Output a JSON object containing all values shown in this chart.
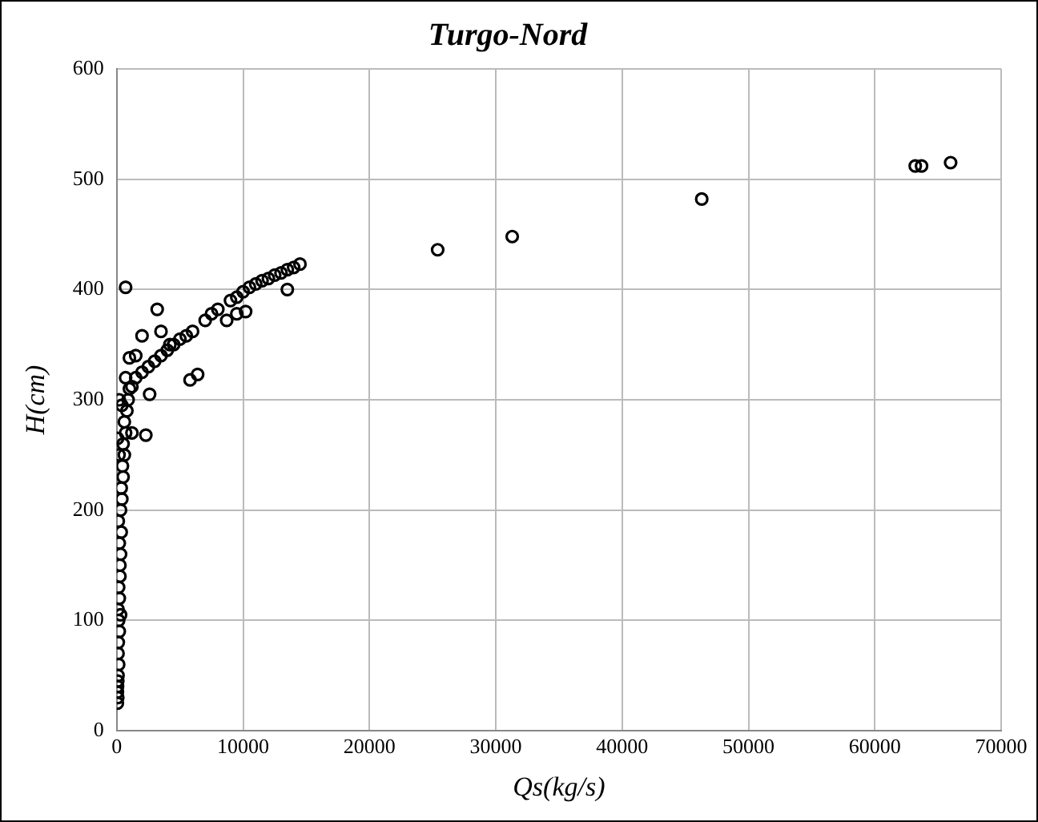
{
  "chart_data": {
    "type": "scatter",
    "title": "Turgo-Nord",
    "xlabel": "Qs(kg/s)",
    "ylabel": "H(cm)",
    "x": [
      50,
      80,
      60,
      100,
      150,
      100,
      120,
      200,
      150,
      300,
      200,
      250,
      300,
      200,
      350,
      300,
      400,
      350,
      500,
      450,
      600,
      500,
      700,
      600,
      800,
      200,
      400,
      100,
      150,
      250,
      50,
      80,
      120,
      180,
      60,
      900,
      1000,
      1200,
      1500,
      2000,
      2500,
      3000,
      3500,
      4000,
      4500,
      5000,
      5500,
      6000,
      7000,
      7500,
      8000,
      9000,
      9500,
      10000,
      10500,
      11000,
      11500,
      12000,
      12500,
      13000,
      13500,
      14000,
      14500,
      700,
      3200,
      2000,
      3500,
      5800,
      6400,
      1200,
      2300,
      13500,
      9500,
      10200,
      8700,
      1000,
      1500,
      700,
      2600,
      4200,
      25400,
      31300,
      46300,
      63200,
      63700,
      66000
    ],
    "values": [
      25,
      30,
      40,
      50,
      60,
      70,
      80,
      90,
      100,
      105,
      120,
      140,
      160,
      170,
      180,
      200,
      210,
      220,
      230,
      240,
      250,
      260,
      270,
      280,
      290,
      300,
      295,
      110,
      130,
      150,
      35,
      45,
      190,
      250,
      265,
      300,
      310,
      312,
      320,
      325,
      330,
      335,
      340,
      345,
      350,
      355,
      358,
      362,
      372,
      378,
      382,
      390,
      393,
      398,
      402,
      405,
      408,
      410,
      413,
      415,
      418,
      420,
      423,
      402,
      382,
      358,
      362,
      318,
      323,
      270,
      268,
      400,
      378,
      380,
      372,
      338,
      340,
      320,
      305,
      350,
      436,
      448,
      482,
      512,
      512,
      515
    ],
    "color": "#000000",
    "marker": "circle",
    "xlim": [
      0,
      70000
    ],
    "xticks": [
      0,
      10000,
      20000,
      30000,
      40000,
      50000,
      60000,
      70000
    ],
    "ylim": [
      0,
      600
    ],
    "yticks": [
      0,
      100,
      200,
      300,
      400,
      500,
      600
    ],
    "grid": true
  }
}
